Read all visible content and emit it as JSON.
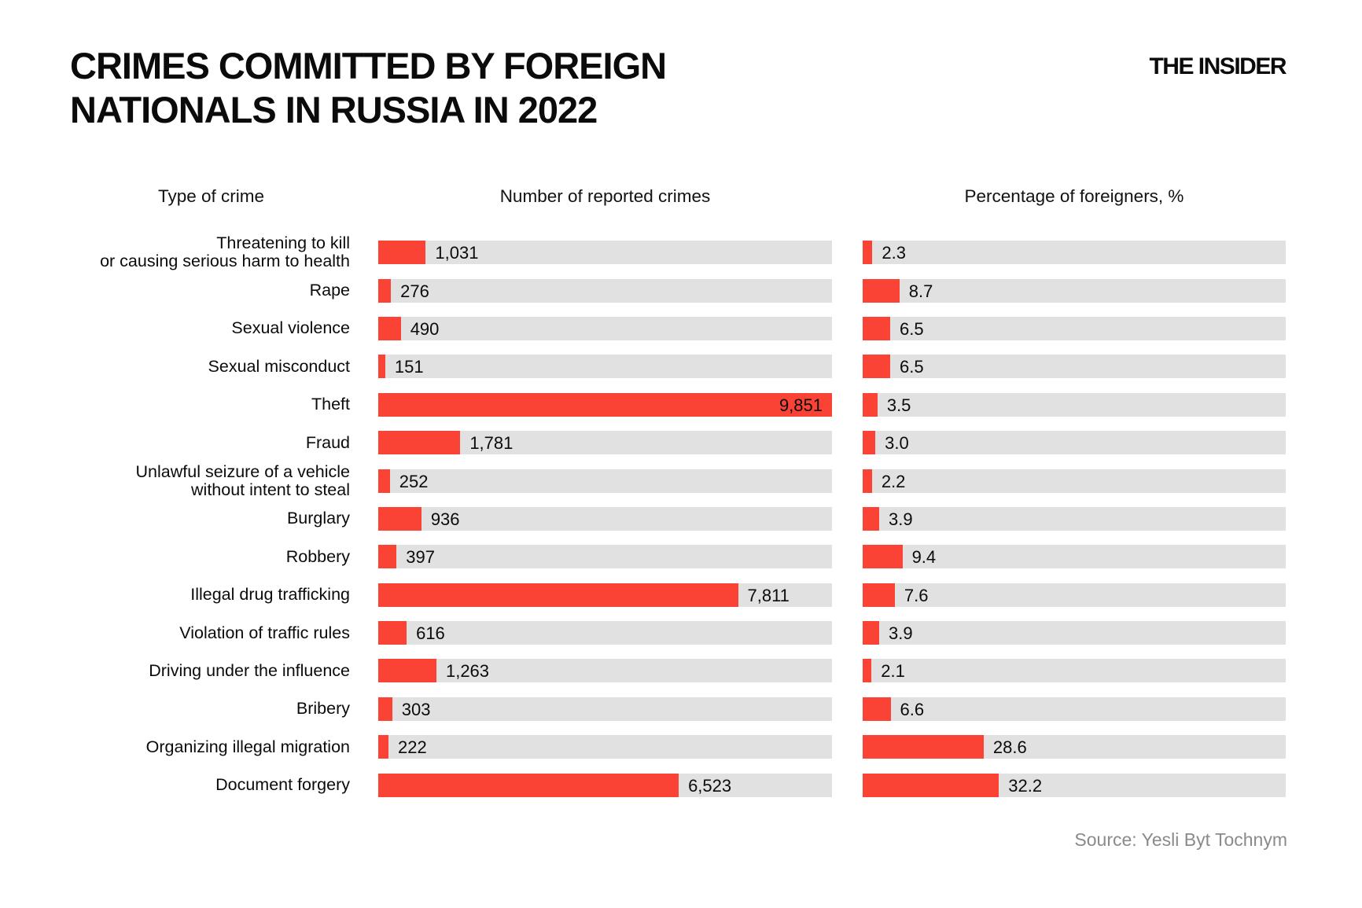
{
  "header": {
    "title": "CRIMES COMMITTED BY FOREIGN\nNATIONALS IN RUSSIA IN 2022",
    "logo": "THE INSIDER"
  },
  "columns": {
    "type": "Type of crime",
    "count": "Number of reported crimes",
    "percent": "Percentage of foreigners, %"
  },
  "source": "Source: Yesli Byt Tochnym",
  "colors": {
    "bar": "#fa4334",
    "track": "#e1e1e1",
    "text": "#0b0b0b",
    "source_text": "#8a8a8a"
  },
  "chart_data": {
    "type": "bar",
    "orientation": "horizontal",
    "title": "Crimes committed by foreign nationals in Russia in 2022",
    "legend_position": "none",
    "grid": false,
    "count_axis_max": 9851,
    "percent_axis_max": 100,
    "rows": [
      {
        "label": "Threatening to kill\nor causing serious harm to health",
        "count": 1031,
        "count_label": "1,031",
        "percent": 2.3,
        "percent_label": "2.3"
      },
      {
        "label": "Rape",
        "count": 276,
        "count_label": "276",
        "percent": 8.7,
        "percent_label": "8.7"
      },
      {
        "label": "Sexual violence",
        "count": 490,
        "count_label": "490",
        "percent": 6.5,
        "percent_label": "6.5"
      },
      {
        "label": "Sexual misconduct",
        "count": 151,
        "count_label": "151",
        "percent": 6.5,
        "percent_label": "6.5"
      },
      {
        "label": "Theft",
        "count": 9851,
        "count_label": "9,851",
        "percent": 3.5,
        "percent_label": "3.5"
      },
      {
        "label": "Fraud",
        "count": 1781,
        "count_label": "1,781",
        "percent": 3.0,
        "percent_label": "3.0"
      },
      {
        "label": "Unlawful seizure of a vehicle\nwithout intent to steal",
        "count": 252,
        "count_label": "252",
        "percent": 2.2,
        "percent_label": "2.2"
      },
      {
        "label": "Burglary",
        "count": 936,
        "count_label": "936",
        "percent": 3.9,
        "percent_label": "3.9"
      },
      {
        "label": "Robbery",
        "count": 397,
        "count_label": "397",
        "percent": 9.4,
        "percent_label": "9.4"
      },
      {
        "label": "Illegal drug trafficking",
        "count": 7811,
        "count_label": "7,811",
        "percent": 7.6,
        "percent_label": "7.6"
      },
      {
        "label": "Violation of traffic rules",
        "count": 616,
        "count_label": "616",
        "percent": 3.9,
        "percent_label": "3.9"
      },
      {
        "label": "Driving under the influence",
        "count": 1263,
        "count_label": "1,263",
        "percent": 2.1,
        "percent_label": "2.1"
      },
      {
        "label": "Bribery",
        "count": 303,
        "count_label": "303",
        "percent": 6.6,
        "percent_label": "6.6"
      },
      {
        "label": "Organizing illegal migration",
        "count": 222,
        "count_label": "222",
        "percent": 28.6,
        "percent_label": "28.6"
      },
      {
        "label": "Document forgery",
        "count": 6523,
        "count_label": "6,523",
        "percent": 32.2,
        "percent_label": "32.2"
      }
    ]
  }
}
